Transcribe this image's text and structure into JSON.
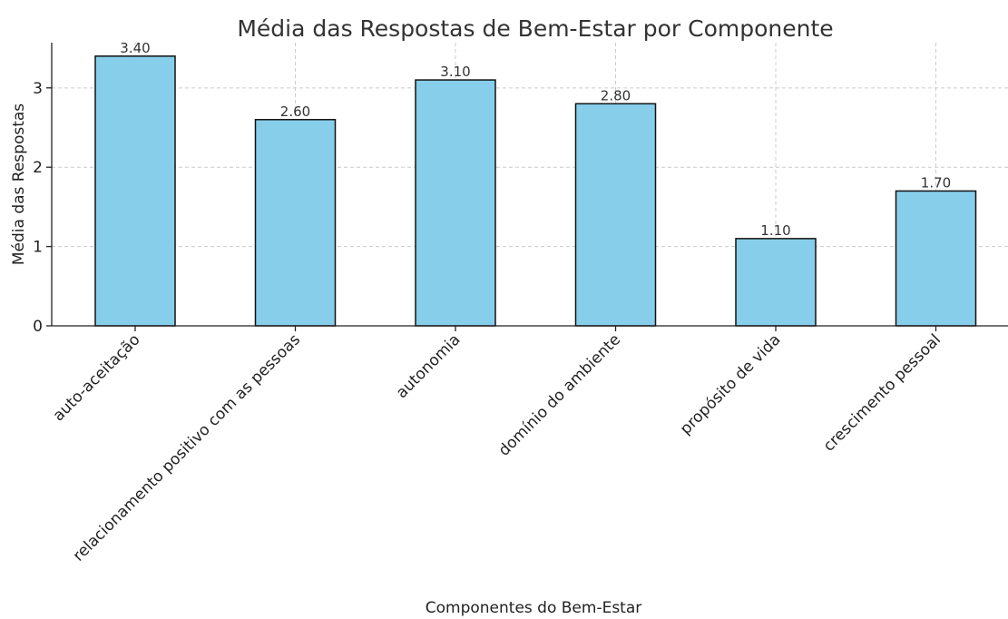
{
  "chart_data": {
    "type": "bar",
    "title": "Média das Respostas de Bem-Estar por Componente",
    "xlabel": "Componentes do Bem-Estar",
    "ylabel": "Média das Respostas",
    "categories": [
      "auto-aceitação",
      "relacionamento positivo com as pessoas",
      "autonomia",
      "domínio do ambiente",
      "propósito de vida",
      "crescimento pessoal"
    ],
    "values": [
      3.4,
      2.6,
      3.1,
      2.8,
      1.1,
      1.7
    ],
    "data_labels": [
      "3.40",
      "2.60",
      "3.10",
      "2.80",
      "1.10",
      "1.70"
    ],
    "yticks": [
      0,
      1,
      2,
      3
    ],
    "ylim": [
      0,
      3.57
    ],
    "grid": true,
    "bar_color": "#87CEEB",
    "edge_color": "#111111"
  }
}
